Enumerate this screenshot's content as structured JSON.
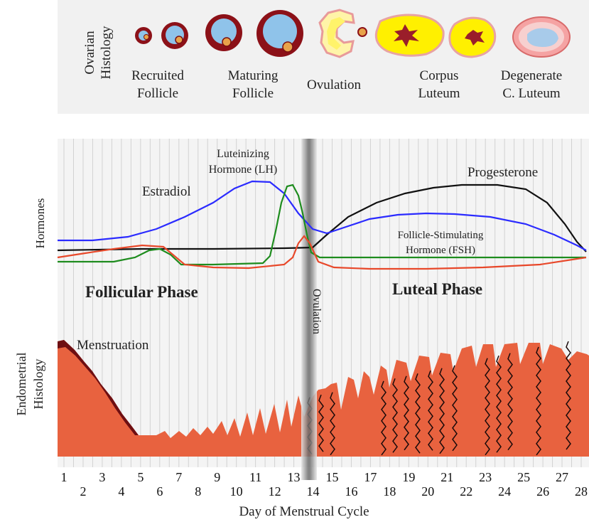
{
  "ovarian": {
    "axis_label_line1": "Ovarian",
    "axis_label_line2": "Histology",
    "stages": [
      {
        "line1": "Recruited",
        "line2": "Follicle"
      },
      {
        "line1": "Maturing",
        "line2": "Follicle"
      },
      {
        "line1": "Ovulation",
        "line2": ""
      },
      {
        "line1": "Corpus",
        "line2": "Luteum"
      },
      {
        "line1": "Degenerate",
        "line2": "C. Luteum"
      }
    ]
  },
  "hormones": {
    "axis_label": "Hormones",
    "estradiol_label": "Estradiol",
    "lh_label_line1": "Luteinizing",
    "lh_label_line2": "Hormone (LH)",
    "progesterone_label": "Progesterone",
    "fsh_label_line1": "Follicle-Stimulating",
    "fsh_label_line2": "Hormone (FSH)",
    "follicular_phase": "Follicular Phase",
    "luteal_phase": "Luteal Phase",
    "ovulation_label": "Ovulation",
    "colors": {
      "estradiol": "#2b2bff",
      "lh": "#1e8c1e",
      "progesterone": "#111111",
      "fsh": "#e8482a"
    }
  },
  "endometrium": {
    "axis_label_line1": "Endometrial",
    "axis_label_line2": "Histology",
    "menstruation_label": "Menstruation",
    "tissue_color": "#e8623f",
    "dark_color": "#6e0f12"
  },
  "days": {
    "odd": [
      "1",
      "3",
      "5",
      "7",
      "9",
      "11",
      "13",
      "15",
      "17",
      "19",
      "21",
      "23",
      "25",
      "27"
    ],
    "even": [
      "2",
      "4",
      "6",
      "8",
      "10",
      "12",
      "14",
      "16",
      "18",
      "20",
      "22",
      "24",
      "26",
      "28"
    ],
    "axis_title": "Day of Menstrual Cycle"
  }
}
